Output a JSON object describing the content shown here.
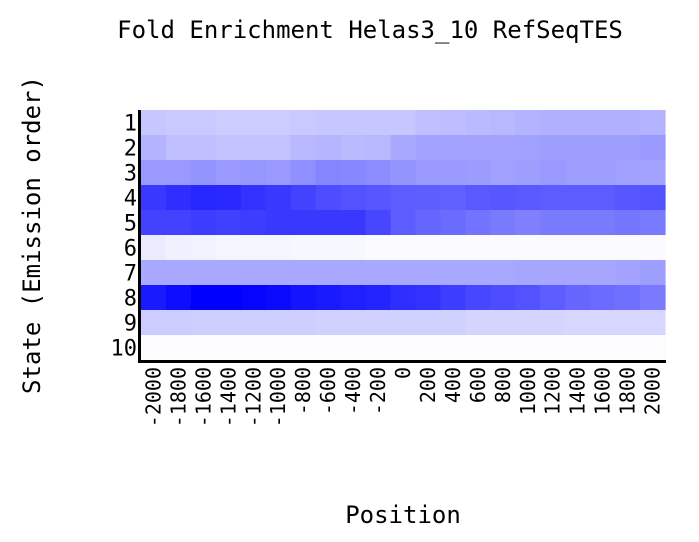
{
  "chart_data": {
    "type": "heatmap",
    "title": "Fold Enrichment Helas3_10 RefSeqTES",
    "xlabel": "Position",
    "ylabel": "State (Emission order)",
    "x": [
      -2000,
      -1800,
      -1600,
      -1400,
      -1200,
      -1000,
      -800,
      -600,
      -400,
      -200,
      0,
      200,
      400,
      600,
      800,
      1000,
      1200,
      1400,
      1600,
      1800,
      2000
    ],
    "x_tick_labels": [
      "-2000",
      "-1800",
      "-1600",
      "-1400",
      "-1200",
      "-1000",
      "-800",
      "-600",
      "-400",
      "-200",
      "0",
      "200",
      "400",
      "600",
      "800",
      "1000",
      "1200",
      "1400",
      "1600",
      "1800",
      "2000"
    ],
    "y": [
      "1",
      "2",
      "3",
      "4",
      "5",
      "6",
      "7",
      "8",
      "9",
      "10"
    ],
    "color_low": "#ffffff",
    "color_high": "#0000ff",
    "value_range": [
      0,
      1
    ],
    "values": [
      [
        0.22,
        0.21,
        0.21,
        0.2,
        0.2,
        0.2,
        0.21,
        0.22,
        0.22,
        0.22,
        0.22,
        0.25,
        0.26,
        0.27,
        0.28,
        0.3,
        0.31,
        0.31,
        0.31,
        0.31,
        0.3
      ],
      [
        0.3,
        0.25,
        0.25,
        0.24,
        0.24,
        0.24,
        0.28,
        0.29,
        0.27,
        0.28,
        0.34,
        0.36,
        0.36,
        0.36,
        0.36,
        0.37,
        0.38,
        0.38,
        0.38,
        0.38,
        0.4
      ],
      [
        0.4,
        0.4,
        0.42,
        0.4,
        0.41,
        0.4,
        0.44,
        0.48,
        0.47,
        0.45,
        0.42,
        0.4,
        0.4,
        0.39,
        0.37,
        0.38,
        0.4,
        0.38,
        0.38,
        0.37,
        0.36
      ],
      [
        0.78,
        0.82,
        0.85,
        0.84,
        0.8,
        0.78,
        0.74,
        0.7,
        0.68,
        0.66,
        0.64,
        0.63,
        0.62,
        0.65,
        0.66,
        0.65,
        0.64,
        0.64,
        0.64,
        0.66,
        0.68
      ],
      [
        0.74,
        0.74,
        0.76,
        0.75,
        0.76,
        0.78,
        0.78,
        0.78,
        0.78,
        0.72,
        0.64,
        0.6,
        0.58,
        0.55,
        0.52,
        0.5,
        0.52,
        0.52,
        0.52,
        0.54,
        0.52
      ],
      [
        0.08,
        0.06,
        0.05,
        0.04,
        0.04,
        0.04,
        0.03,
        0.03,
        0.03,
        0.02,
        0.02,
        0.02,
        0.02,
        0.02,
        0.02,
        0.02,
        0.02,
        0.02,
        0.02,
        0.02,
        0.02
      ],
      [
        0.34,
        0.34,
        0.34,
        0.34,
        0.34,
        0.34,
        0.34,
        0.34,
        0.34,
        0.34,
        0.34,
        0.34,
        0.34,
        0.34,
        0.34,
        0.35,
        0.35,
        0.35,
        0.35,
        0.36,
        0.38
      ],
      [
        0.9,
        0.95,
        1.0,
        1.0,
        0.98,
        0.96,
        0.92,
        0.9,
        0.88,
        0.86,
        0.82,
        0.8,
        0.76,
        0.72,
        0.7,
        0.68,
        0.64,
        0.6,
        0.58,
        0.56,
        0.52
      ],
      [
        0.2,
        0.2,
        0.19,
        0.19,
        0.19,
        0.19,
        0.19,
        0.18,
        0.18,
        0.18,
        0.18,
        0.18,
        0.18,
        0.17,
        0.17,
        0.17,
        0.17,
        0.16,
        0.16,
        0.16,
        0.16
      ],
      [
        0.01,
        0.01,
        0.01,
        0.01,
        0.01,
        0.01,
        0.01,
        0.01,
        0.01,
        0.01,
        0.01,
        0.01,
        0.01,
        0.01,
        0.01,
        0.01,
        0.01,
        0.01,
        0.01,
        0.01,
        0.01
      ]
    ],
    "grid": false,
    "legend": "none"
  }
}
